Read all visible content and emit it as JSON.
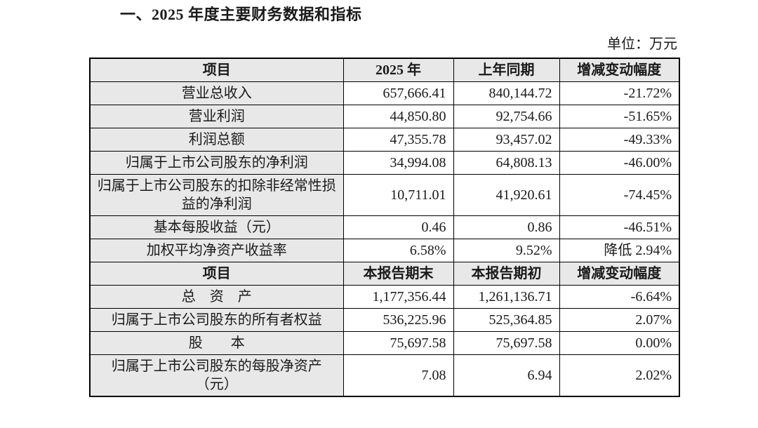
{
  "page": {
    "title": "一、2025 年度主要财务数据和指标",
    "unit_label": "单位：万元"
  },
  "table": {
    "sections": [
      {
        "header": [
          "项目",
          "2025 年",
          "上年同期",
          "增减变动幅度"
        ],
        "rows": [
          {
            "label": "营业总收入",
            "current": "657,666.41",
            "prior": "840,144.72",
            "change": "-21.72%"
          },
          {
            "label": "营业利润",
            "current": "44,850.80",
            "prior": "92,754.66",
            "change": "-51.65%"
          },
          {
            "label": "利润总额",
            "current": "47,355.78",
            "prior": "93,457.02",
            "change": "-49.33%"
          },
          {
            "label": "归属于上市公司股东的净利润",
            "current": "34,994.08",
            "prior": "64,808.13",
            "change": "-46.00%"
          },
          {
            "label": "归属于上市公司股东的扣除非经常性损益的净利润",
            "current": "10,711.01",
            "prior": "41,920.61",
            "change": "-74.45%"
          },
          {
            "label": "基本每股收益（元）",
            "current": "0.46",
            "prior": "0.86",
            "change": "-46.51%"
          },
          {
            "label": "加权平均净资产收益率",
            "current": "6.58%",
            "prior": "9.52%",
            "change": "降低 2.94%"
          }
        ]
      },
      {
        "header": [
          "项目",
          "本报告期末",
          "本报告期初",
          "增减变动幅度"
        ],
        "rows": [
          {
            "label": "总　资　产",
            "current": "1,177,356.44",
            "prior": "1,261,136.71",
            "change": "-6.64%"
          },
          {
            "label": "归属于上市公司股东的所有者权益",
            "current": "536,225.96",
            "prior": "525,364.85",
            "change": "2.07%"
          },
          {
            "label": "股　　本",
            "current": "75,697.58",
            "prior": "75,697.58",
            "change": "0.00%"
          },
          {
            "label": "归属于上市公司股东的每股净资产（元）",
            "current": "7.08",
            "prior": "6.94",
            "change": "2.02%"
          }
        ]
      }
    ]
  }
}
